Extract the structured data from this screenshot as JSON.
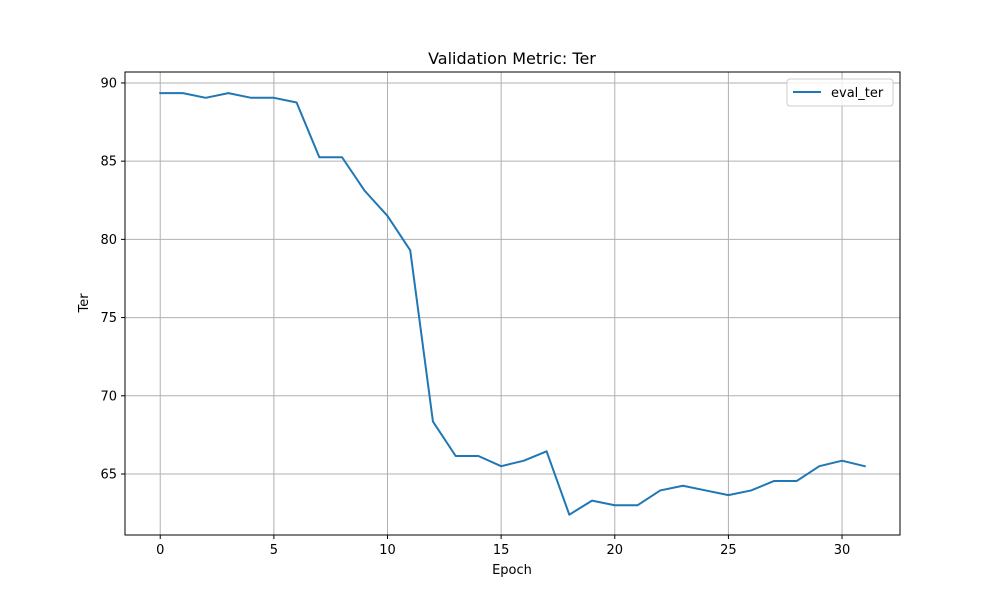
{
  "chart_data": {
    "type": "line",
    "title": "Validation Metric: Ter",
    "xlabel": "Epoch",
    "ylabel": "Ter",
    "xlim": [
      -1.55,
      32.55
    ],
    "ylim": [
      61.1,
      90.7
    ],
    "xticks": [
      0,
      5,
      10,
      15,
      20,
      25,
      30
    ],
    "yticks": [
      65,
      70,
      75,
      80,
      85,
      90
    ],
    "grid": true,
    "legend_position": "top-right",
    "series": [
      {
        "name": "eval_ter",
        "color": "#1f77b4",
        "x": [
          0,
          1,
          2,
          3,
          4,
          5,
          6,
          7,
          8,
          9,
          10,
          11,
          12,
          13,
          14,
          15,
          16,
          17,
          18,
          19,
          20,
          21,
          22,
          23,
          24,
          25,
          26,
          27,
          28,
          29,
          30,
          31
        ],
        "y": [
          89.35,
          89.35,
          89.05,
          89.35,
          89.05,
          89.05,
          88.75,
          85.25,
          85.25,
          83.1,
          81.5,
          79.3,
          68.35,
          66.15,
          66.15,
          65.5,
          65.85,
          66.45,
          62.4,
          63.3,
          63.0,
          63.0,
          63.95,
          64.25,
          63.95,
          63.65,
          63.95,
          64.55,
          64.55,
          65.5,
          65.85,
          65.5
        ]
      }
    ]
  }
}
